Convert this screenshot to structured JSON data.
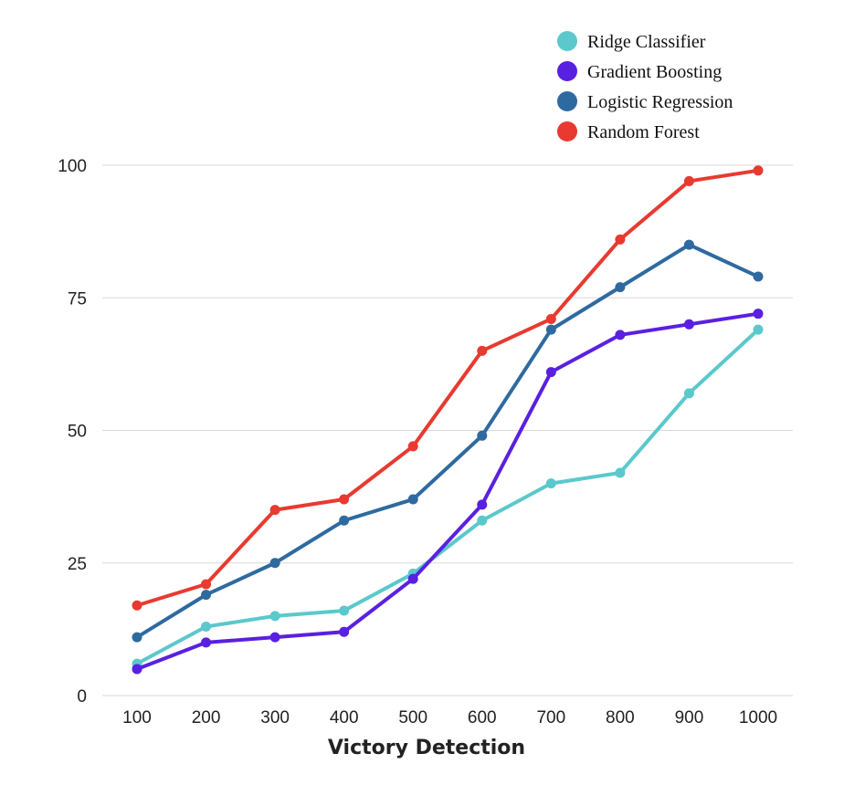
{
  "chart_data": {
    "type": "line",
    "title": "",
    "xlabel": "Victory Detection",
    "ylabel": "",
    "x": [
      100,
      200,
      300,
      400,
      500,
      600,
      700,
      800,
      900,
      1000
    ],
    "ylim": [
      0,
      100
    ],
    "yticks": [
      0,
      25,
      50,
      75,
      100
    ],
    "grid": true,
    "legend_position": "top-right",
    "series": [
      {
        "name": "Ridge Classifier",
        "color": "#5bc8cc",
        "values": [
          6,
          13,
          15,
          16,
          23,
          33,
          40,
          42,
          57,
          69
        ]
      },
      {
        "name": "Gradient Boosting",
        "color": "#5a20e0",
        "values": [
          5,
          10,
          11,
          12,
          22,
          36,
          61,
          68,
          70,
          72
        ]
      },
      {
        "name": "Logistic Regression",
        "color": "#2e6aa0",
        "values": [
          11,
          19,
          25,
          33,
          37,
          49,
          69,
          77,
          85,
          79
        ]
      },
      {
        "name": "Random Forest",
        "color": "#e83a30",
        "values": [
          17,
          21,
          35,
          37,
          47,
          65,
          71,
          86,
          97,
          99
        ]
      }
    ]
  }
}
